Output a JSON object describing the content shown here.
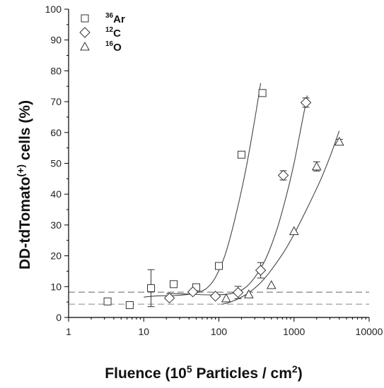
{
  "chart_data": {
    "type": "scatter",
    "x_scale": "log",
    "xlim": [
      1,
      10000
    ],
    "ylim": [
      0,
      100
    ],
    "x_ticks": [
      1,
      10,
      100,
      1000,
      10000
    ],
    "x_tick_labels": [
      "1",
      "10",
      "100",
      "1000",
      "10000"
    ],
    "y_ticks": [
      0,
      10,
      20,
      30,
      40,
      50,
      60,
      70,
      80,
      90,
      100
    ],
    "y_tick_labels": [
      "0",
      "10",
      "20",
      "30",
      "40",
      "50",
      "60",
      "70",
      "80",
      "90",
      "100"
    ],
    "xlabel": {
      "main": "Fluence (10",
      "sup": "5",
      "rest": " Particles / cm",
      "sup2": "2",
      "end": ")"
    },
    "ylabel": {
      "main": "DD-tdTomato",
      "sup": "(+)",
      "rest": " cells (%)"
    },
    "grid": false,
    "legend_position": "top-left",
    "reference_lines": [
      {
        "y": 8.2,
        "style": "dashed",
        "color": "#8c8c8c"
      },
      {
        "y": 4.3,
        "style": "dashed",
        "color": "#a8a8a8"
      }
    ],
    "series": [
      {
        "name": "Ar",
        "isotope": "36",
        "marker": "square",
        "x": [
          3.3,
          6.5,
          12.5,
          25,
          50,
          100,
          200,
          380
        ],
        "y": [
          5.2,
          4.0,
          9.5,
          10.8,
          9.8,
          16.7,
          52.8,
          72.8
        ],
        "err": [
          0,
          0,
          6.0,
          0,
          0,
          0,
          0,
          0
        ],
        "fit": [
          [
            10,
            6.6
          ],
          [
            15,
            7.0
          ],
          [
            25,
            7.1
          ],
          [
            40,
            7.5
          ],
          [
            55,
            8.3
          ],
          [
            70,
            9.6
          ],
          [
            90,
            13
          ],
          [
            120,
            20
          ],
          [
            160,
            31
          ],
          [
            220,
            46
          ],
          [
            290,
            62
          ],
          [
            360,
            76
          ]
        ]
      },
      {
        "name": "C",
        "isotope": "12",
        "marker": "diamond",
        "x": [
          22,
          45,
          90,
          180,
          360,
          720,
          1440
        ],
        "y": [
          6.3,
          8.3,
          6.9,
          8.1,
          15.3,
          46.1,
          69.7
        ],
        "err": [
          0,
          0,
          0,
          2.0,
          2.5,
          1.5,
          1.5
        ],
        "fit": [
          [
            20,
            7.8
          ],
          [
            40,
            7.6
          ],
          [
            80,
            7.3
          ],
          [
            150,
            7.8
          ],
          [
            220,
            9.5
          ],
          [
            300,
            13
          ],
          [
            420,
            19
          ],
          [
            600,
            29
          ],
          [
            800,
            40
          ],
          [
            1000,
            50
          ],
          [
            1250,
            62
          ],
          [
            1500,
            72
          ]
        ]
      },
      {
        "name": "O",
        "isotope": "16",
        "marker": "triangle",
        "x": [
          125,
          250,
          500,
          1000,
          2000,
          4000
        ],
        "y": [
          6.2,
          7.5,
          10.5,
          28.0,
          49.0,
          57.0
        ],
        "err": [
          0,
          0,
          0,
          0,
          1.5,
          0.8
        ],
        "fit": [
          [
            110,
            4.3
          ],
          [
            150,
            5.2
          ],
          [
            250,
            8.0
          ],
          [
            400,
            12.5
          ],
          [
            700,
            20.5
          ],
          [
            1000,
            27
          ],
          [
            1500,
            35.5
          ],
          [
            2200,
            44
          ],
          [
            3000,
            52
          ],
          [
            4000,
            60.5
          ]
        ]
      }
    ]
  }
}
